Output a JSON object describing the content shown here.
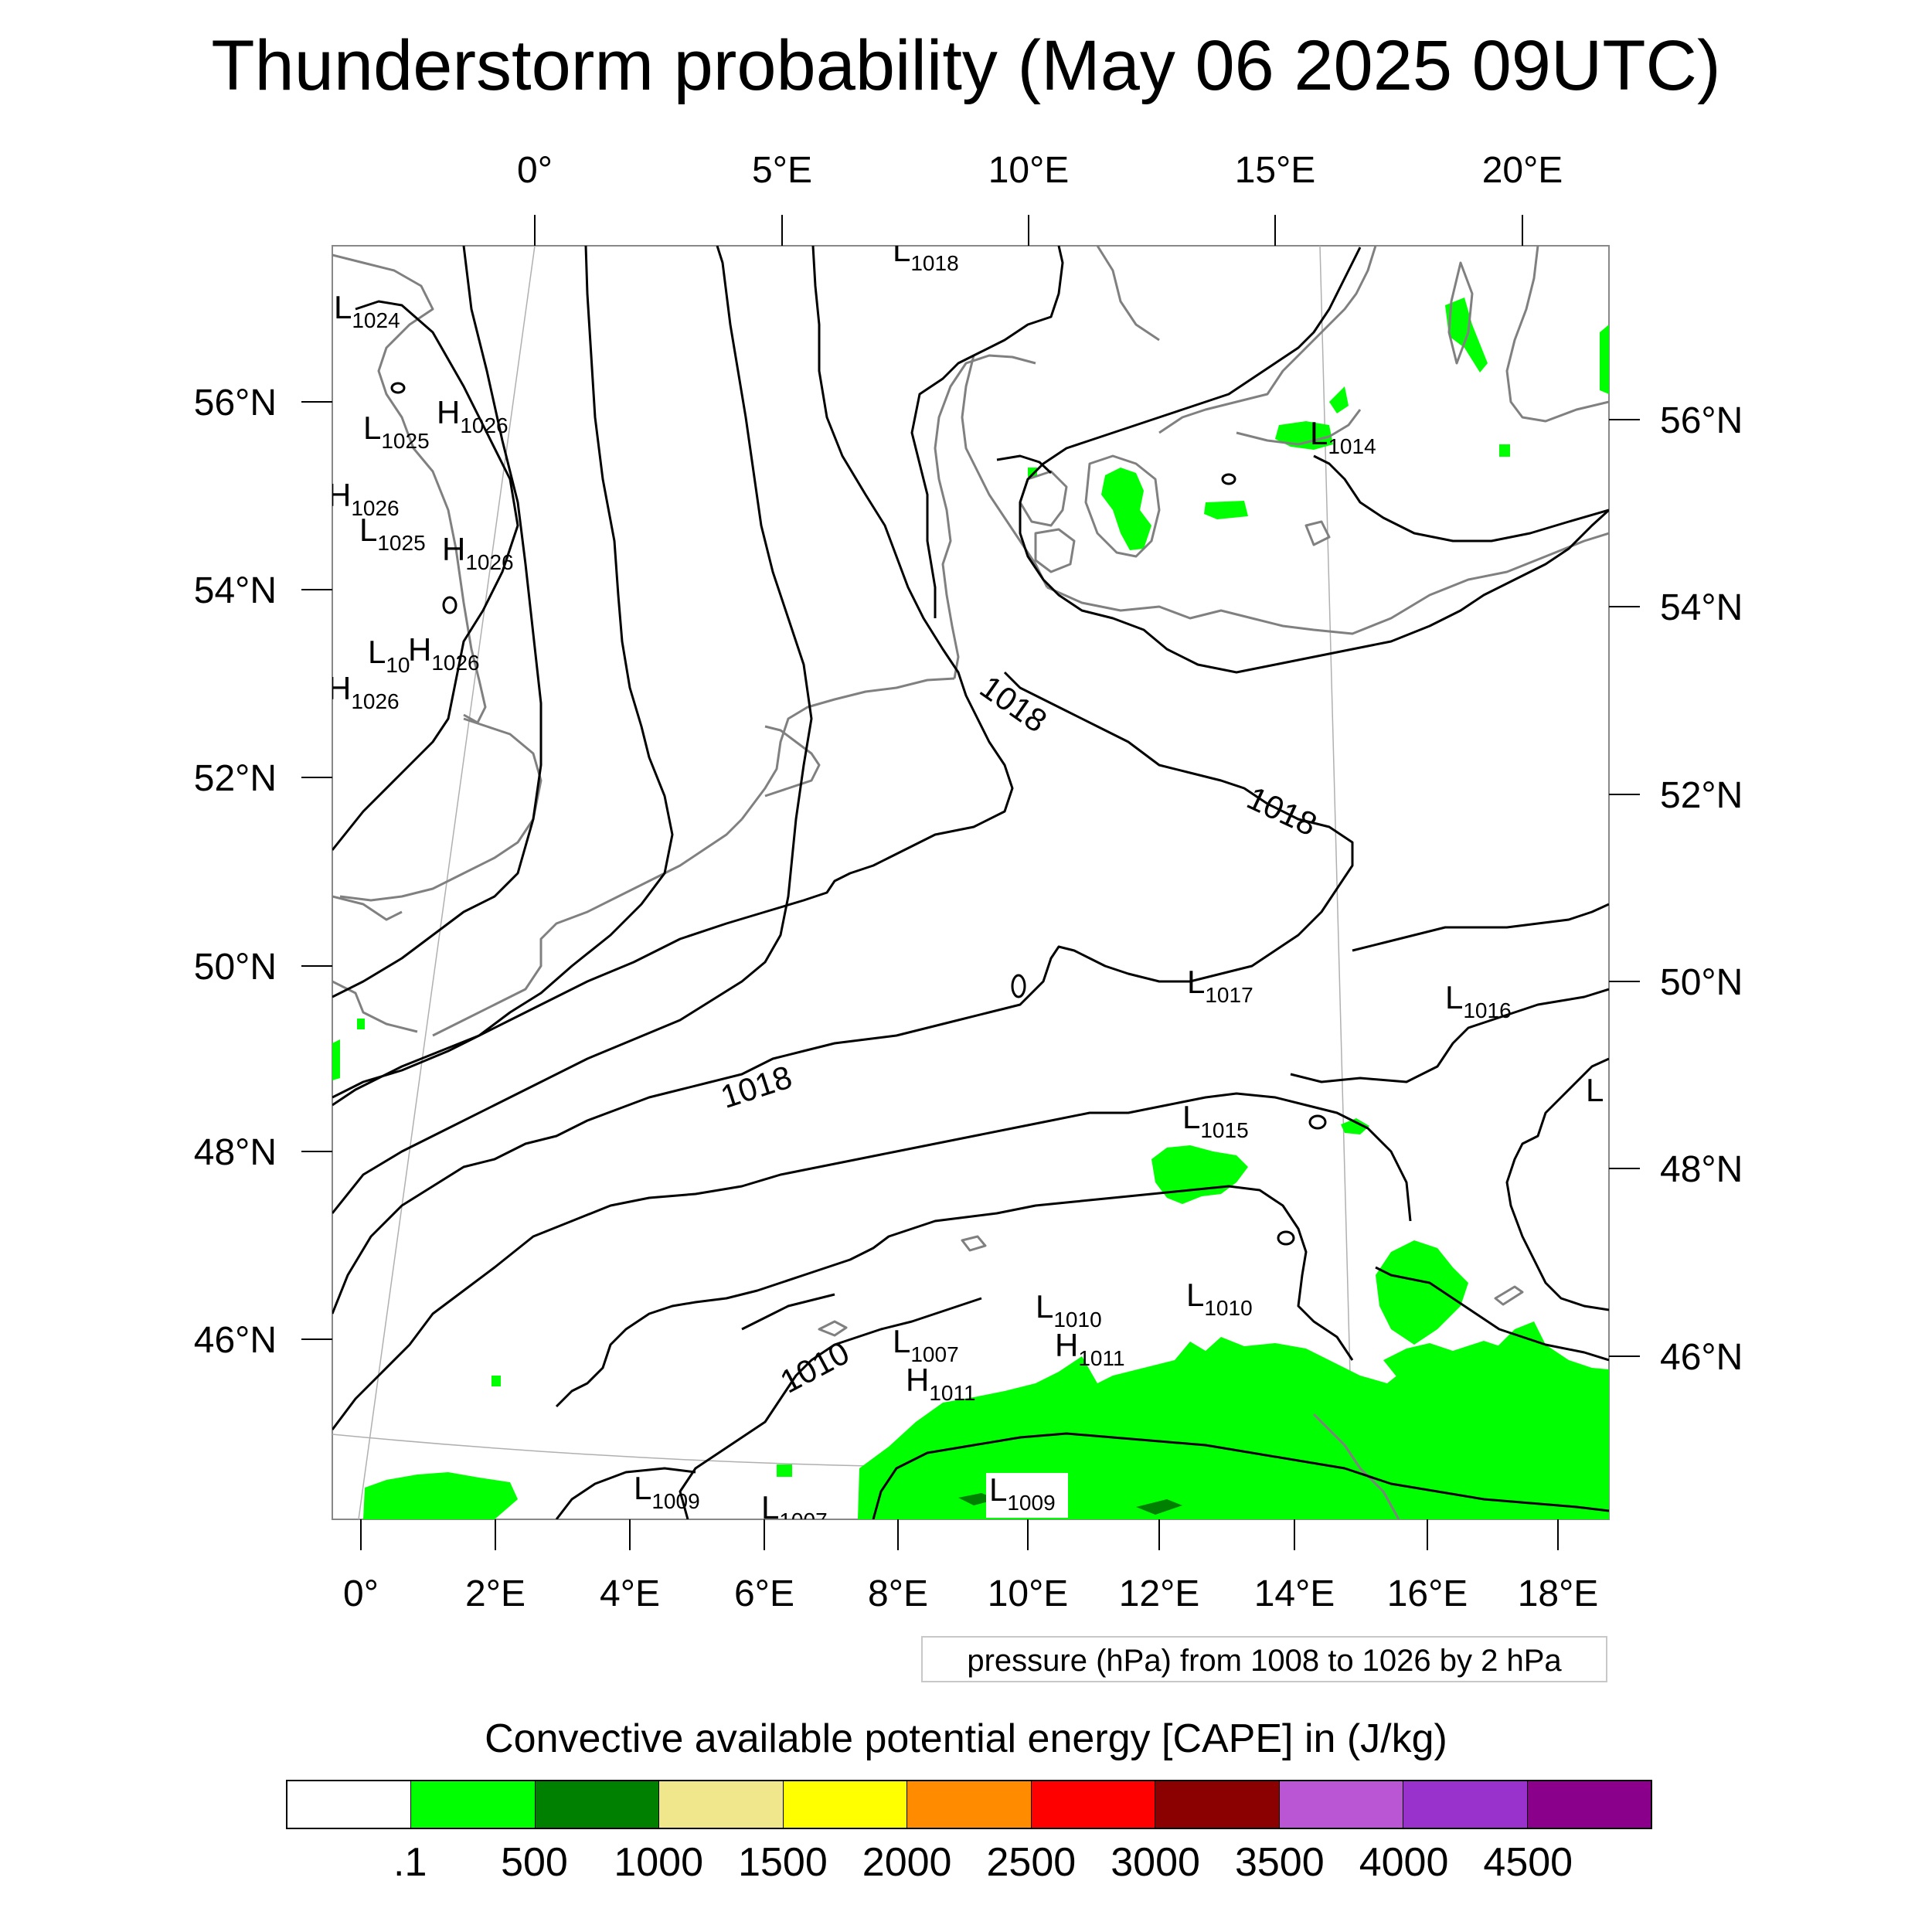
{
  "title": "Thunderstorm probability (May 06 2025 09UTC)",
  "top_lon_labels": [
    "0°",
    "5°E",
    "10°E",
    "15°E",
    "20°E"
  ],
  "bottom_lon_labels": [
    "0°",
    "2°E",
    "4°E",
    "6°E",
    "8°E",
    "10°E",
    "12°E",
    "14°E",
    "16°E",
    "18°E"
  ],
  "left_lat_labels": [
    "56°N",
    "54°N",
    "52°N",
    "50°N",
    "48°N",
    "46°N"
  ],
  "right_lat_labels": [
    "56°N",
    "54°N",
    "52°N",
    "50°N",
    "48°N",
    "46°N"
  ],
  "pressure_systems": [
    {
      "type": "L",
      "value": "1018"
    },
    {
      "type": "L",
      "value": "1024"
    },
    {
      "type": "L",
      "value": "1025"
    },
    {
      "type": "H",
      "value": "1026"
    },
    {
      "type": "H",
      "value": "1026"
    },
    {
      "type": "L",
      "value": "1025"
    },
    {
      "type": "H",
      "value": "1026"
    },
    {
      "type": "L",
      "value": "10"
    },
    {
      "type": "H",
      "value": "1026"
    },
    {
      "type": "H",
      "value": "1026"
    },
    {
      "type": "L",
      "value": "1014"
    },
    {
      "type": "L",
      "value": "1017"
    },
    {
      "type": "L",
      "value": "1016"
    },
    {
      "type": "L",
      "value": "1015"
    },
    {
      "type": "L",
      "value": ""
    },
    {
      "type": "L",
      "value": "1010"
    },
    {
      "type": "L",
      "value": "1010"
    },
    {
      "type": "L",
      "value": "1007"
    },
    {
      "type": "H",
      "value": "1011"
    },
    {
      "type": "H",
      "value": "1011"
    },
    {
      "type": "L",
      "value": "1009"
    },
    {
      "type": "L",
      "value": "1009"
    },
    {
      "type": "L",
      "value": "1007"
    }
  ],
  "contour_labels": [
    "1018",
    "1018",
    "1018",
    "1010"
  ],
  "pressure_note": "pressure (hPa) from 1008 to 1026 by 2 hPa",
  "legend": {
    "title": "Convective available potential energy [CAPE] in (J/kg)",
    "colors": [
      "#ffffff",
      "#00ff00",
      "#008000",
      "#f0e68c",
      "#ffff00",
      "#ff8c00",
      "#ff0000",
      "#8b0000",
      "#ba55d3",
      "#9932cc",
      "#8b008b"
    ],
    "labels": [
      ".1",
      "500",
      "1000",
      "1500",
      "2000",
      "2500",
      "3000",
      "3500",
      "4000",
      "4500"
    ]
  },
  "colors": {
    "cape_low": "#00ff00",
    "cape_mid": "#008000",
    "coastline": "#808080",
    "isobar": "#000000"
  }
}
